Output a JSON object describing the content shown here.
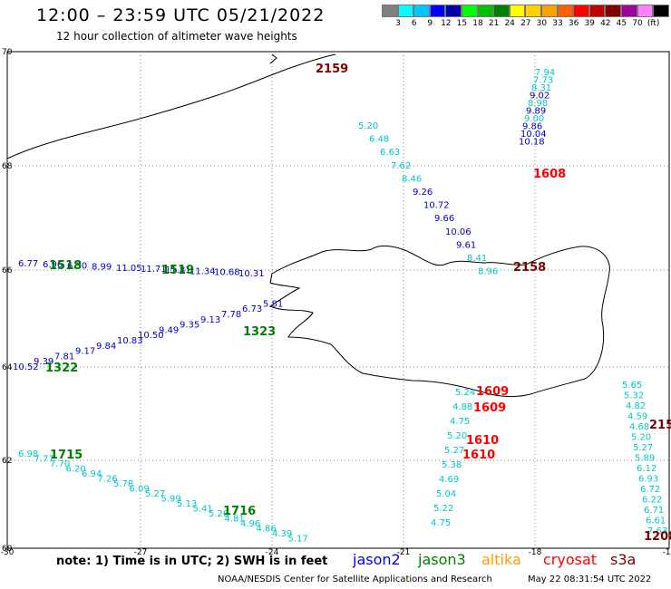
{
  "header": {
    "title": "12:00 – 23:59 UTC 05/21/2022",
    "subtitle": "12 hour collection of altimeter wave heights"
  },
  "legend": {
    "colors": [
      "#808080",
      "#00ffff",
      "#00c8ff",
      "#0000ff",
      "#0000a0",
      "#00ff00",
      "#00c000",
      "#008000",
      "#ffff00",
      "#ffd000",
      "#ffa000",
      "#ff6000",
      "#ff0000",
      "#c00000",
      "#800000",
      "#a000a0",
      "#ff80ff",
      "#000000"
    ],
    "labels": [
      "3",
      "6",
      "9",
      "12",
      "15",
      "18",
      "21",
      "24",
      "27",
      "30",
      "33",
      "36",
      "39",
      "42",
      "45",
      "70",
      "(ft)"
    ]
  },
  "axes": {
    "lat_labels": [
      "70",
      "68",
      "66",
      "64",
      "62",
      "60"
    ],
    "lon_labels": [
      "-30",
      "-27",
      "-24",
      "-21",
      "-18",
      "-15"
    ]
  },
  "tracks": [
    {
      "color": "#00c8c8",
      "labels": [
        [
          "7.94",
          0
        ],
        [
          "7.73",
          0
        ],
        [
          "8.31",
          0
        ],
        [
          "9.02",
          1
        ],
        [
          "8.98",
          0
        ],
        [
          "9.89",
          1
        ],
        [
          "9.00",
          0
        ],
        [
          "9.86",
          1
        ],
        [
          "10.04",
          1
        ],
        [
          "10.18",
          1
        ]
      ]
    },
    {
      "color": "#00c8c8",
      "labels": [
        [
          "5.20",
          0
        ],
        [
          "6.48",
          0
        ],
        [
          "6.63",
          0
        ],
        [
          "7.62",
          0
        ],
        [
          "8.46",
          0
        ],
        [
          "9.26",
          1
        ],
        [
          "10.72",
          1
        ],
        [
          "9.66",
          1
        ],
        [
          "10.06",
          1
        ],
        [
          "9.61",
          1
        ],
        [
          "8.41",
          0
        ],
        [
          "8.96",
          0
        ]
      ]
    },
    {
      "color": "#0000c8",
      "labels": [
        [
          "6.77",
          0
        ],
        [
          "6.96",
          0
        ],
        [
          "6.30",
          1
        ],
        [
          "8.99",
          1
        ],
        [
          "11.05",
          1
        ],
        [
          "11.71",
          1
        ],
        [
          "11.81",
          1
        ],
        [
          "11.34",
          1
        ],
        [
          "10.68",
          1
        ],
        [
          "10.31",
          1
        ]
      ]
    },
    {
      "color": "#0000c8",
      "labels": [
        [
          "10.52",
          1
        ],
        [
          "9.39",
          1
        ],
        [
          "7.81",
          1
        ],
        [
          "9.17",
          1
        ],
        [
          "9.84",
          1
        ],
        [
          "10.83",
          1
        ],
        [
          "10.50",
          1
        ],
        [
          "9.49",
          1
        ],
        [
          "9.35",
          1
        ],
        [
          "9.13",
          1
        ],
        [
          "7.78",
          0
        ],
        [
          "6.73",
          0
        ],
        [
          "5.81",
          0
        ]
      ]
    },
    {
      "color": "#00c8c8",
      "labels": [
        [
          "6.98",
          0
        ],
        [
          "7.77",
          0
        ],
        [
          "7.70",
          0
        ],
        [
          "6.20",
          0
        ],
        [
          "6.94",
          0
        ],
        [
          "7.26",
          0
        ],
        [
          "5.78",
          0
        ],
        [
          "6.09",
          0
        ],
        [
          "5.27",
          0
        ],
        [
          "5.99",
          0
        ],
        [
          "5.13",
          0
        ],
        [
          "5.41",
          0
        ],
        [
          "5.20",
          0
        ],
        [
          "4.81",
          0
        ],
        [
          "4.96",
          0
        ],
        [
          "4.86",
          0
        ],
        [
          "4.39",
          0
        ],
        [
          "5.17",
          0
        ]
      ]
    },
    {
      "color": "#00c8c8",
      "labels": [
        [
          "5.24",
          0
        ],
        [
          "4.88",
          0
        ],
        [
          "4.75",
          0
        ],
        [
          "5.20",
          0
        ],
        [
          "5.27",
          0
        ],
        [
          "5.38",
          0
        ],
        [
          "4.69",
          0
        ],
        [
          "5.04",
          0
        ],
        [
          "5.22",
          0
        ],
        [
          "4.75",
          0
        ]
      ]
    },
    {
      "color": "#00c8c8",
      "labels": [
        [
          "5.65",
          0
        ],
        [
          "5.32",
          0
        ],
        [
          "4.82",
          0
        ],
        [
          "4.59",
          0
        ],
        [
          "4.68",
          0
        ],
        [
          "5.20",
          0
        ],
        [
          "5.27",
          0
        ],
        [
          "5.89",
          0
        ],
        [
          "6.12",
          0
        ],
        [
          "6.93",
          0
        ],
        [
          "6.72",
          0
        ],
        [
          "6.22",
          0
        ],
        [
          "6.71",
          0
        ],
        [
          "6.61",
          0
        ],
        [
          "7.63",
          0
        ]
      ]
    }
  ],
  "time_labels": [
    {
      "text": "2159",
      "color": "#800000"
    },
    {
      "text": "1608",
      "color": "#ff0000"
    },
    {
      "text": "1518",
      "color": "#008000"
    },
    {
      "text": "1519",
      "color": "#008000"
    },
    {
      "text": "2158",
      "color": "#800000"
    },
    {
      "text": "1323",
      "color": "#008000"
    },
    {
      "text": "1322",
      "color": "#008000"
    },
    {
      "text": "1609",
      "color": "#ff0000"
    },
    {
      "text": "1609",
      "color": "#ff0000"
    },
    {
      "text": "1610",
      "color": "#ff0000"
    },
    {
      "text": "1610",
      "color": "#ff0000"
    },
    {
      "text": "1715",
      "color": "#008000"
    },
    {
      "text": "1716",
      "color": "#008000"
    },
    {
      "text": "215",
      "color": "#800000"
    },
    {
      "text": "1208",
      "color": "#800000"
    }
  ],
  "footer": {
    "note": "note:  1) Time is in UTC;  2) SWH is in feet",
    "satellites": [
      {
        "name": "jason2",
        "color": "#0000ff"
      },
      {
        "name": "jason3",
        "color": "#008000"
      },
      {
        "name": "altika",
        "color": "#ffa000"
      },
      {
        "name": "cryosat",
        "color": "#ff0000"
      },
      {
        "name": "s3a",
        "color": "#800000"
      }
    ],
    "credit": "NOAA/NESDIS Center for Satellite Applications and Research",
    "timestamp": "May 22 08:31:54 UTC 2022"
  }
}
